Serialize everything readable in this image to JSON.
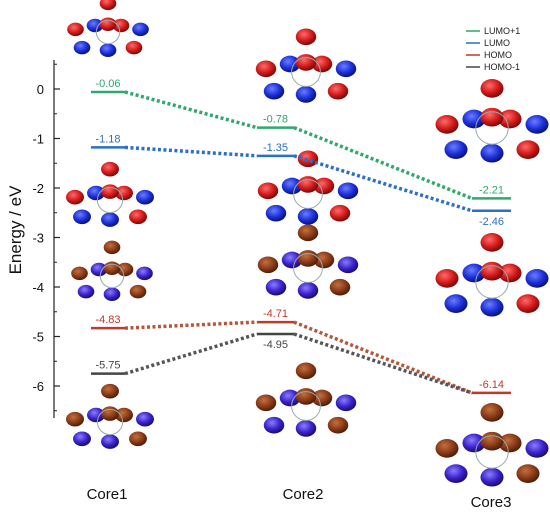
{
  "chart_data": {
    "type": "line",
    "ylabel": "Energy / eV",
    "ylim": [
      -6.75,
      0.75
    ],
    "yticks": [
      0,
      -1,
      -2,
      -3,
      -4,
      -5,
      -6
    ],
    "categories": [
      "Core1",
      "Core2",
      "Core3"
    ],
    "series": [
      {
        "name": "LUMO+1",
        "values": [
          -0.06,
          -0.78,
          -2.21
        ],
        "labels": [
          "-0.06",
          "-0.78",
          "-2.21"
        ],
        "color": "#2ea86b",
        "label_pos": [
          "above",
          "above",
          "above"
        ]
      },
      {
        "name": "LUMO",
        "values": [
          -1.18,
          -1.35,
          -2.46
        ],
        "labels": [
          "-1.18",
          "-1.35",
          "-2.46"
        ],
        "color": "#2a6fc9",
        "label_pos": [
          "above",
          "above",
          "below"
        ]
      },
      {
        "name": "HOMO",
        "values": [
          -4.83,
          -4.71,
          -6.14
        ],
        "labels": [
          "-4.83",
          "-4.71",
          "-6.14"
        ],
        "color": "#c0392b",
        "label_pos": [
          "above",
          "above",
          "above"
        ]
      },
      {
        "name": "HOMO-1",
        "values": [
          -5.75,
          -4.95,
          null
        ],
        "labels": [
          "-5.75",
          "-4.95",
          ""
        ],
        "color": "#444444",
        "label_pos": [
          "above",
          "below",
          "above"
        ]
      }
    ],
    "connectors": [
      {
        "series": "LUMO+1",
        "color": "#2ea86b"
      },
      {
        "series": "LUMO",
        "color": "#2a6fc9"
      },
      {
        "series": "HOMO",
        "color": "#b5553a"
      },
      {
        "series": "HOMO-1",
        "color": "#555555",
        "to_value": -6.14
      }
    ],
    "legend": {
      "placement": "top-right"
    },
    "grid": false
  }
}
